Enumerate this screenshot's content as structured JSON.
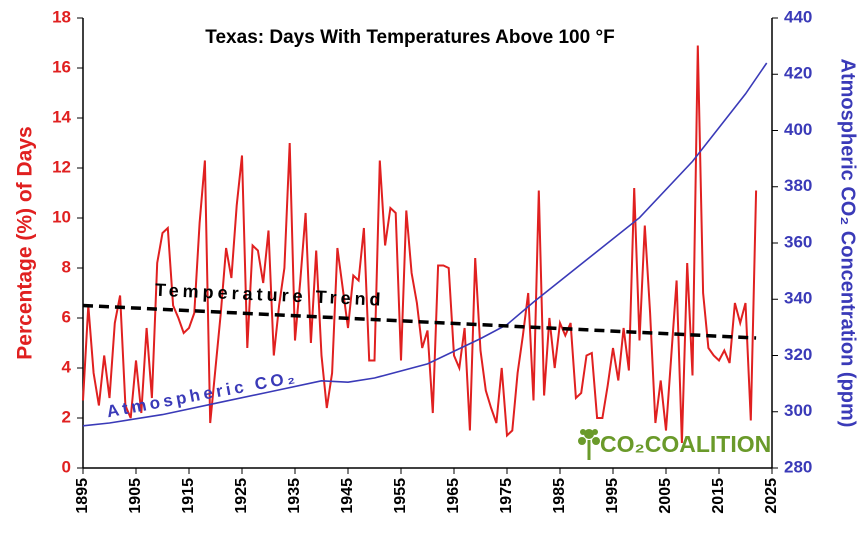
{
  "chart_data": {
    "type": "line",
    "title": "Texas: Days With Temperatures Above 100 °F",
    "y_label": "Percentage (%) of Days",
    "y2_label": "Atmospheric CO₂ Concentration (ppm)",
    "logo_text": "CO₂COALITION",
    "xlim": [
      1895,
      2025
    ],
    "xticks": [
      1895,
      1905,
      1915,
      1925,
      1935,
      1945,
      1955,
      1965,
      1975,
      1985,
      1995,
      2005,
      2015,
      2025
    ],
    "ylim": [
      0,
      18
    ],
    "yticks": [
      0,
      2,
      4,
      6,
      8,
      10,
      12,
      14,
      16,
      18
    ],
    "y2lim": [
      280,
      440
    ],
    "y2ticks": [
      280,
      300,
      320,
      340,
      360,
      380,
      400,
      420,
      440
    ],
    "x": [
      1895,
      1896,
      1897,
      1898,
      1899,
      1900,
      1901,
      1902,
      1903,
      1904,
      1905,
      1906,
      1907,
      1908,
      1909,
      1910,
      1911,
      1912,
      1913,
      1914,
      1915,
      1916,
      1917,
      1918,
      1919,
      1920,
      1921,
      1922,
      1923,
      1924,
      1925,
      1926,
      1927,
      1928,
      1929,
      1930,
      1931,
      1932,
      1933,
      1934,
      1935,
      1936,
      1937,
      1938,
      1939,
      1940,
      1941,
      1942,
      1943,
      1944,
      1945,
      1946,
      1947,
      1948,
      1949,
      1950,
      1951,
      1952,
      1953,
      1954,
      1955,
      1956,
      1957,
      1958,
      1959,
      1960,
      1961,
      1962,
      1963,
      1964,
      1965,
      1966,
      1967,
      1968,
      1969,
      1970,
      1971,
      1972,
      1973,
      1974,
      1975,
      1976,
      1977,
      1978,
      1979,
      1980,
      1981,
      1982,
      1983,
      1984,
      1985,
      1986,
      1987,
      1988,
      1989,
      1990,
      1991,
      1992,
      1993,
      1994,
      1995,
      1996,
      1997,
      1998,
      1999,
      2000,
      2001,
      2002,
      2003,
      2004,
      2005,
      2006,
      2007,
      2008,
      2009,
      2010,
      2011,
      2012,
      2013,
      2014,
      2015,
      2016,
      2017,
      2018,
      2019,
      2020,
      2021,
      2022
    ],
    "series": [
      {
        "color": "#e02020",
        "values": [
          2.7,
          6.5,
          3.8,
          2.5,
          4.5,
          2.8,
          5.8,
          6.9,
          2.5,
          2.0,
          4.3,
          2.2,
          5.6,
          2.8,
          8.2,
          9.4,
          9.6,
          6.5,
          6.0,
          5.4,
          5.6,
          6.2,
          9.8,
          12.3,
          1.8,
          4.0,
          6.2,
          8.8,
          7.6,
          10.5,
          12.5,
          4.8,
          8.9,
          8.7,
          7.4,
          9.5,
          4.5,
          6.5,
          8.0,
          13.0,
          5.1,
          7.5,
          10.2,
          5.0,
          8.7,
          4.5,
          2.4,
          3.8,
          8.8,
          7.2,
          5.6,
          7.7,
          7.5,
          9.6,
          4.3,
          4.3,
          12.3,
          8.9,
          10.4,
          10.2,
          4.3,
          10.3,
          7.8,
          6.6,
          4.8,
          5.5,
          2.2,
          8.1,
          8.1,
          8.0,
          4.5,
          4.0,
          5.6,
          1.5,
          8.4,
          4.7,
          3.1,
          2.4,
          1.8,
          4.0,
          1.3,
          1.5,
          3.8,
          5.3,
          7.0,
          2.7,
          11.1,
          2.9,
          6.0,
          4.0,
          5.8,
          5.3,
          5.8,
          2.8,
          3.0,
          4.5,
          4.6,
          2.0,
          2.0,
          3.3,
          4.8,
          3.5,
          5.6,
          3.9,
          11.2,
          5.1,
          9.7,
          6.2,
          1.8,
          3.5,
          1.5,
          4.5,
          7.5,
          1.0,
          8.2,
          3.7,
          16.9,
          7.0,
          4.8,
          4.5,
          4.3,
          4.7,
          4.2,
          6.6,
          5.8,
          6.6,
          1.9,
          11.1
        ]
      },
      {
        "name": "Atmospheric CO₂",
        "color": "#3a3ab8",
        "axis": "y2",
        "x": [
          1895,
          1900,
          1910,
          1920,
          1930,
          1940,
          1945,
          1950,
          1960,
          1970,
          1975,
          1980,
          1990,
          2000,
          2010,
          2020,
          2024
        ],
        "values": [
          295,
          296,
          299,
          303,
          307,
          311,
          310.5,
          312,
          317,
          326,
          331,
          339,
          354,
          369,
          389,
          413,
          424
        ]
      },
      {
        "name": "Temperature Trend",
        "color": "#000000",
        "dashed": true,
        "x": [
          1895,
          2022
        ],
        "values": [
          6.5,
          5.2
        ]
      }
    ]
  }
}
